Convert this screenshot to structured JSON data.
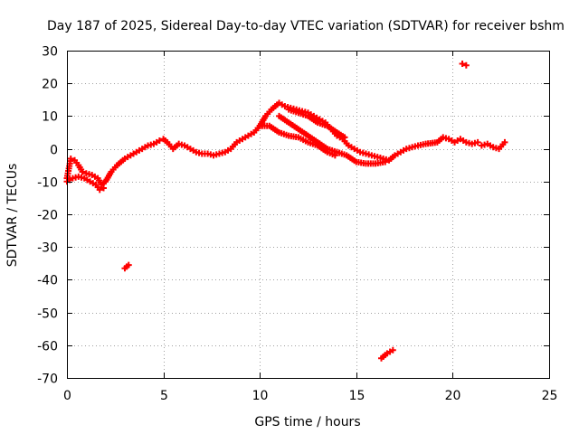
{
  "chart_data": {
    "type": "scatter",
    "title": "Day 187 of 2025, Sidereal Day-to-day VTEC variation (SDTVAR) for receiver bshm",
    "xlabel": "GPS time / hours",
    "ylabel": "SDTVAR / TECUs",
    "xlim": [
      0,
      25
    ],
    "ylim": [
      -70,
      30
    ],
    "xticks": [
      0,
      5,
      10,
      15,
      20,
      25
    ],
    "yticks": [
      30,
      20,
      10,
      0,
      -10,
      -20,
      -30,
      -40,
      -50,
      -60,
      -70
    ],
    "grid": true,
    "marker": "plus",
    "color": "#ff0000",
    "series": [
      {
        "name": "main-track",
        "points": [
          [
            0.0,
            -9
          ],
          [
            0.2,
            -3
          ],
          [
            0.4,
            -3.5
          ],
          [
            0.6,
            -5
          ],
          [
            0.8,
            -7
          ],
          [
            1.0,
            -7.5
          ],
          [
            1.3,
            -8
          ],
          [
            1.6,
            -9
          ],
          [
            1.8,
            -11
          ],
          [
            2.0,
            -10
          ],
          [
            2.3,
            -7
          ],
          [
            2.6,
            -5
          ],
          [
            3.0,
            -3
          ],
          [
            3.3,
            -2
          ],
          [
            3.6,
            -1
          ],
          [
            3.9,
            0
          ],
          [
            4.2,
            1
          ],
          [
            4.5,
            1.5
          ],
          [
            4.8,
            2.5
          ],
          [
            5.0,
            3
          ],
          [
            5.2,
            2
          ],
          [
            5.5,
            0
          ],
          [
            5.8,
            1.5
          ],
          [
            6.1,
            1
          ],
          [
            6.4,
            0
          ],
          [
            6.7,
            -1
          ],
          [
            7.0,
            -1.5
          ],
          [
            7.3,
            -1.5
          ],
          [
            7.6,
            -2
          ],
          [
            7.9,
            -1.5
          ],
          [
            8.2,
            -1
          ],
          [
            8.5,
            0
          ],
          [
            8.8,
            2
          ],
          [
            9.1,
            3
          ],
          [
            9.4,
            4
          ],
          [
            9.7,
            5
          ],
          [
            10.0,
            7
          ],
          [
            10.3,
            10
          ],
          [
            10.6,
            12
          ],
          [
            11.0,
            14
          ],
          [
            11.3,
            13
          ],
          [
            11.6,
            12.5
          ],
          [
            11.9,
            12
          ],
          [
            12.2,
            11.5
          ],
          [
            12.5,
            11
          ],
          [
            12.8,
            10
          ],
          [
            13.1,
            9
          ],
          [
            13.4,
            8
          ],
          [
            13.7,
            6
          ],
          [
            14.0,
            4
          ],
          [
            14.3,
            3
          ],
          [
            14.6,
            1
          ],
          [
            14.9,
            0
          ],
          [
            15.2,
            -1
          ],
          [
            15.5,
            -1.5
          ],
          [
            15.8,
            -2
          ],
          [
            16.1,
            -2.5
          ],
          [
            16.4,
            -3
          ],
          [
            16.7,
            -3.5
          ],
          [
            17.0,
            -2
          ],
          [
            17.3,
            -1
          ],
          [
            17.6,
            0
          ],
          [
            17.9,
            0.5
          ],
          [
            18.2,
            1
          ],
          [
            18.6,
            1.5
          ],
          [
            19.2,
            2
          ],
          [
            19.5,
            3.5
          ],
          [
            19.8,
            3
          ],
          [
            20.1,
            2
          ],
          [
            20.4,
            3
          ],
          [
            20.7,
            2
          ],
          [
            21.0,
            1.5
          ],
          [
            21.3,
            2
          ]
        ]
      },
      {
        "name": "lower-branch-1",
        "points": [
          [
            0.0,
            -10
          ],
          [
            0.3,
            -9
          ],
          [
            0.6,
            -8.5
          ],
          [
            0.9,
            -9
          ],
          [
            1.2,
            -10
          ],
          [
            1.5,
            -11
          ],
          [
            1.7,
            -12.5
          ],
          [
            1.9,
            -12
          ]
        ]
      },
      {
        "name": "lower-branch-2",
        "points": [
          [
            10.0,
            7
          ],
          [
            10.5,
            7
          ],
          [
            11.0,
            5
          ],
          [
            11.5,
            4
          ],
          [
            12.0,
            3.5
          ],
          [
            12.5,
            2
          ],
          [
            13.0,
            1
          ],
          [
            13.5,
            -1
          ],
          [
            13.9,
            -2
          ]
        ]
      },
      {
        "name": "lower-branch-3",
        "points": [
          [
            11.0,
            10
          ],
          [
            11.5,
            8
          ],
          [
            12.0,
            6
          ],
          [
            12.5,
            4
          ],
          [
            13.0,
            2
          ],
          [
            13.5,
            0
          ],
          [
            14.0,
            -1
          ]
        ]
      },
      {
        "name": "upper-branch-4",
        "points": [
          [
            11.5,
            12
          ],
          [
            12.0,
            11
          ],
          [
            12.5,
            10
          ],
          [
            13.0,
            8
          ],
          [
            13.5,
            7
          ],
          [
            14.0,
            5
          ],
          [
            14.4,
            3.5
          ]
        ]
      },
      {
        "name": "lower-branch-5",
        "points": [
          [
            14.0,
            -1
          ],
          [
            14.5,
            -2
          ],
          [
            15.0,
            -4
          ],
          [
            15.5,
            -4.5
          ],
          [
            16.0,
            -4.5
          ],
          [
            16.5,
            -4
          ]
        ]
      },
      {
        "name": "late-segment",
        "points": [
          [
            21.5,
            1
          ],
          [
            21.8,
            1.5
          ],
          [
            22.1,
            0.5
          ],
          [
            22.4,
            0
          ],
          [
            22.7,
            2
          ]
        ]
      },
      {
        "name": "outlier-high",
        "points": [
          [
            20.5,
            26
          ],
          [
            20.7,
            25.5
          ]
        ]
      },
      {
        "name": "outlier-mid",
        "points": [
          [
            3.0,
            -36.5
          ],
          [
            3.2,
            -35.5
          ]
        ]
      },
      {
        "name": "outlier-low",
        "points": [
          [
            16.3,
            -64
          ],
          [
            16.6,
            -62.5
          ],
          [
            16.9,
            -61.5
          ]
        ]
      }
    ]
  }
}
